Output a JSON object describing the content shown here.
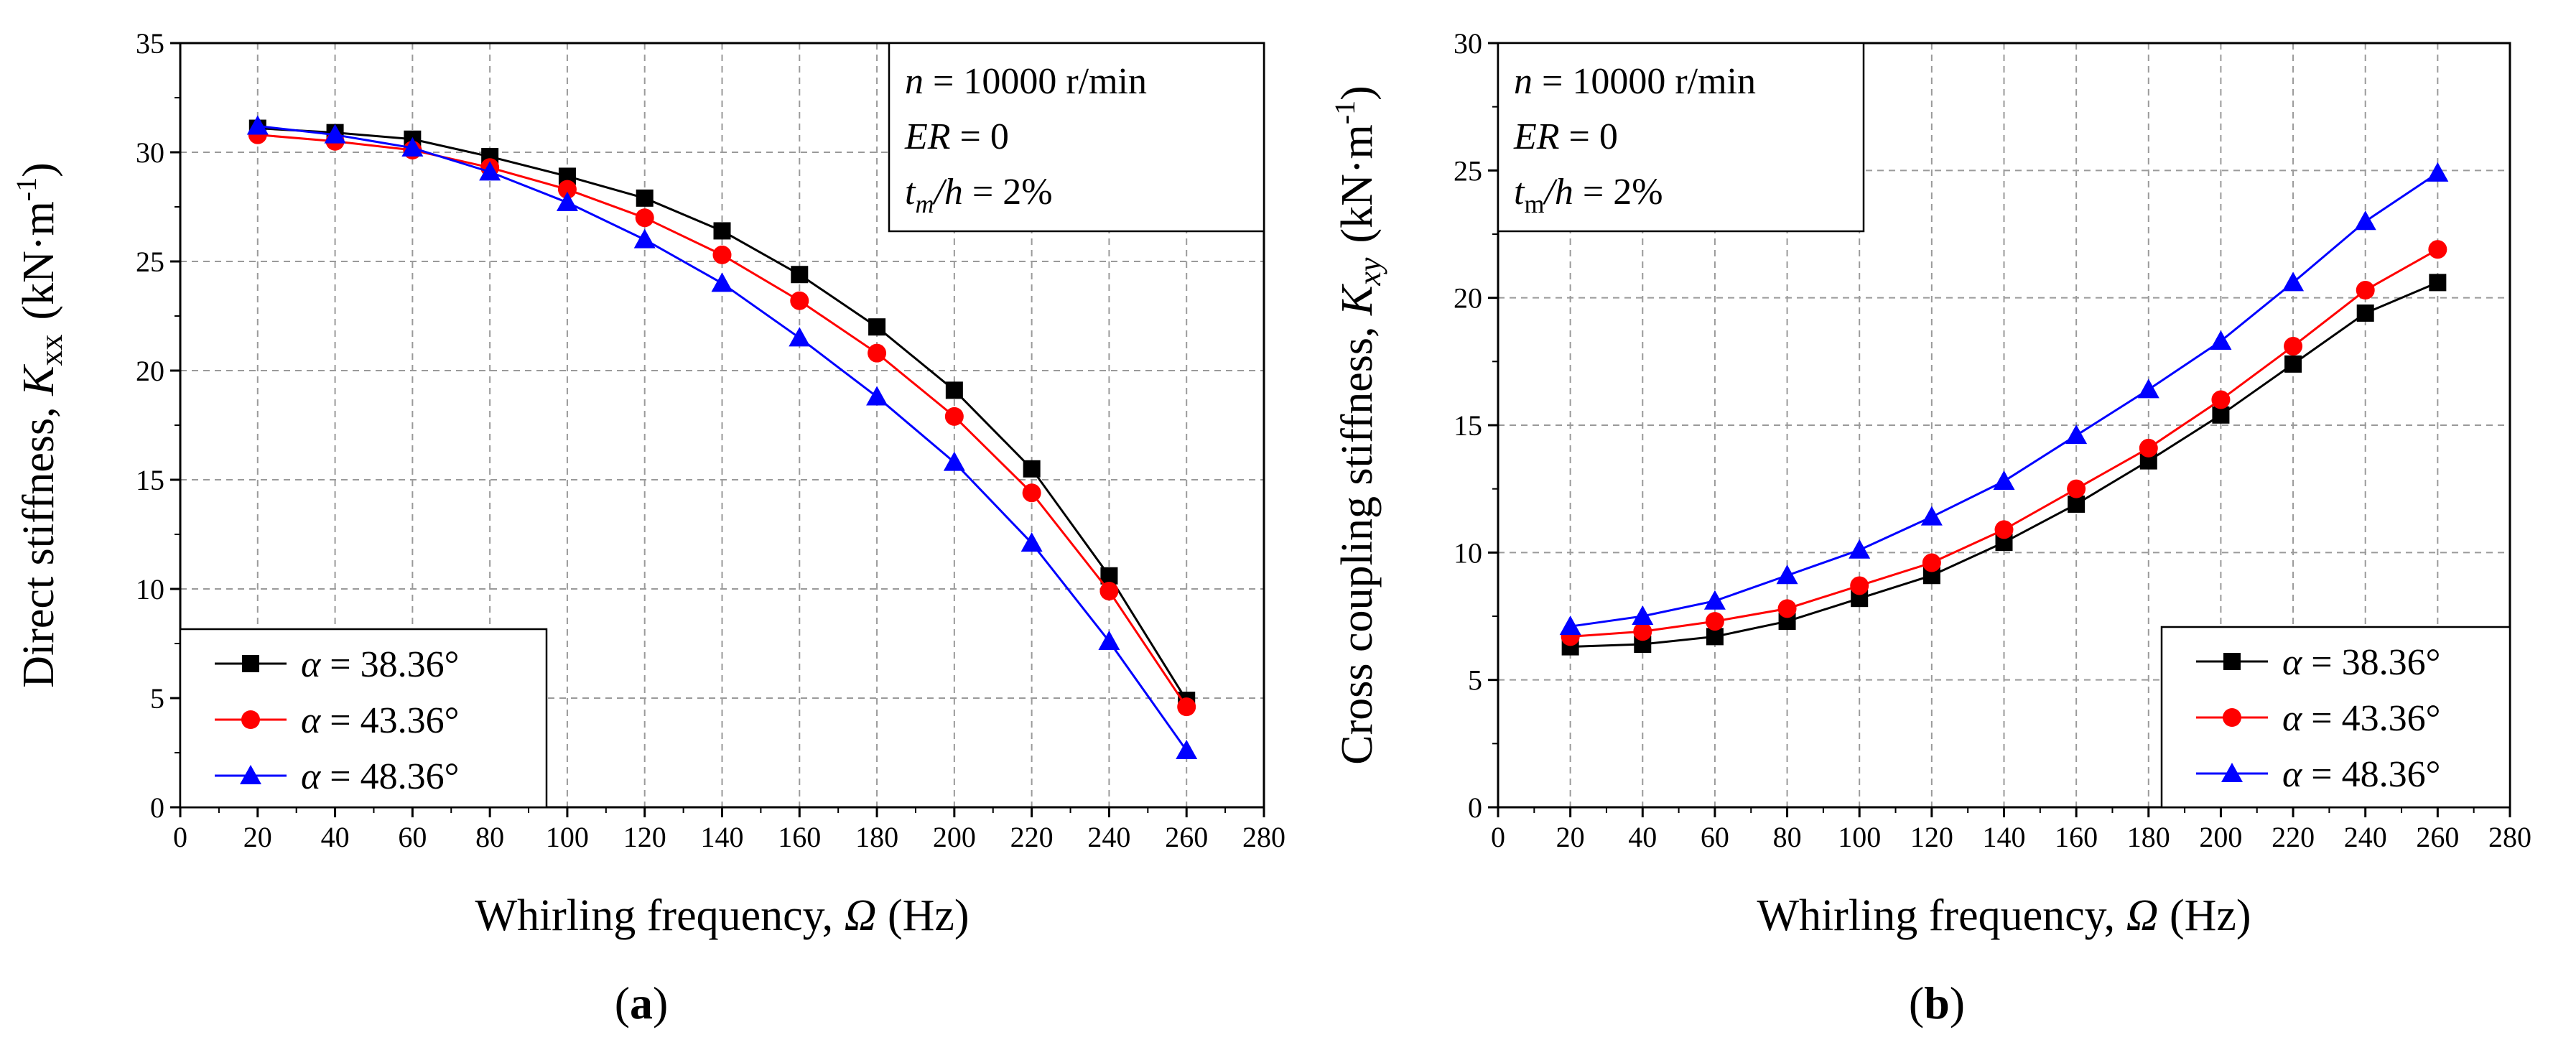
{
  "chart_data": [
    {
      "type": "line",
      "panel_label": "a",
      "title": "",
      "xlabel_text": "Whirling frequency, ",
      "xlabel_symbol": "Ω",
      "xlabel_unit": " (Hz)",
      "ylabel_text": "Direct stiffness, ",
      "ylabel_symbol": "K",
      "ylabel_sub": "xx",
      "ylabel_unit_open": "(kN·m",
      "ylabel_unit_sup": "-1",
      "ylabel_unit_close": ")",
      "xlim": [
        0,
        280
      ],
      "ylim": [
        0,
        35
      ],
      "xticks": [
        "0",
        "20",
        "40",
        "60",
        "80",
        "100",
        "120",
        "140",
        "160",
        "180",
        "200",
        "220",
        "240",
        "260",
        "280"
      ],
      "yticks": [
        "0",
        "5",
        "10",
        "15",
        "20",
        "25",
        "30",
        "35"
      ],
      "grid": true,
      "legend_position": "bottom-left",
      "annotation": {
        "line1_var": "n",
        "line1_val": " = 10000 r/min",
        "line2_var": "ER",
        "line2_val": " = 0",
        "line3_var": "t",
        "line3_sub": "m",
        "line3_var2": "/h",
        "line3_val": " = 2%"
      },
      "x": [
        20,
        40,
        60,
        80,
        100,
        120,
        140,
        160,
        180,
        200,
        220,
        240,
        260
      ],
      "series": [
        {
          "name": "α = 38.36°",
          "symbol": "α",
          "label": " = 38.36°",
          "color": "#000000",
          "marker": "square",
          "values": [
            31.1,
            30.9,
            30.6,
            29.8,
            28.9,
            27.9,
            26.4,
            24.4,
            22.0,
            19.1,
            15.5,
            10.6,
            4.9
          ]
        },
        {
          "name": "α = 43.36°",
          "symbol": "α",
          "label": " = 43.36°",
          "color": "#ff0000",
          "marker": "circle",
          "values": [
            30.8,
            30.5,
            30.1,
            29.3,
            28.3,
            27.0,
            25.3,
            23.2,
            20.8,
            17.9,
            14.4,
            9.9,
            4.6
          ]
        },
        {
          "name": "α = 48.36°",
          "symbol": "α",
          "label": " = 48.36°",
          "color": "#0000ff",
          "marker": "triangle",
          "values": [
            31.2,
            30.8,
            30.2,
            29.1,
            27.7,
            26.0,
            24.0,
            21.5,
            18.8,
            15.8,
            12.1,
            7.6,
            2.6
          ]
        }
      ]
    },
    {
      "type": "line",
      "panel_label": "b",
      "title": "",
      "xlabel_text": "Whirling frequency, ",
      "xlabel_symbol": "Ω",
      "xlabel_unit": " (Hz)",
      "ylabel_text": "Cross coupling stiffness, ",
      "ylabel_symbol": "K",
      "ylabel_sub": "xy",
      "ylabel_unit_open": "(kN·m",
      "ylabel_unit_sup": "-1",
      "ylabel_unit_close": ")",
      "xlim": [
        0,
        280
      ],
      "ylim": [
        0,
        30
      ],
      "xticks": [
        "0",
        "20",
        "40",
        "60",
        "80",
        "100",
        "120",
        "140",
        "160",
        "180",
        "200",
        "220",
        "240",
        "260",
        "280"
      ],
      "yticks": [
        "0",
        "5",
        "10",
        "15",
        "20",
        "25",
        "30"
      ],
      "grid": true,
      "legend_position": "bottom-right",
      "annotation": {
        "line1_var": "n",
        "line1_val": " = 10000 r/min",
        "line2_var": "ER",
        "line2_val": " = 0",
        "line3_var": "t",
        "line3_sub": "m",
        "line3_var2": "/h",
        "line3_val": " = 2%"
      },
      "x": [
        20,
        40,
        60,
        80,
        100,
        120,
        140,
        160,
        180,
        200,
        220,
        240,
        260
      ],
      "series": [
        {
          "name": "α = 38.36°",
          "symbol": "α",
          "label": " = 38.36°",
          "color": "#000000",
          "marker": "square",
          "values": [
            6.3,
            6.4,
            6.7,
            7.3,
            8.2,
            9.1,
            10.4,
            11.9,
            13.6,
            15.4,
            17.4,
            19.4,
            20.6
          ]
        },
        {
          "name": "α = 43.36°",
          "symbol": "α",
          "label": " = 43.36°",
          "color": "#ff0000",
          "marker": "circle",
          "values": [
            6.7,
            6.9,
            7.3,
            7.8,
            8.7,
            9.6,
            10.9,
            12.5,
            14.1,
            16.0,
            18.1,
            20.3,
            21.9
          ]
        },
        {
          "name": "α = 48.36°",
          "symbol": "α",
          "label": " = 48.36°",
          "color": "#0000ff",
          "marker": "triangle",
          "values": [
            7.1,
            7.5,
            8.1,
            9.1,
            10.1,
            11.4,
            12.8,
            14.6,
            16.4,
            18.3,
            20.6,
            23.0,
            24.9
          ]
        }
      ]
    }
  ]
}
